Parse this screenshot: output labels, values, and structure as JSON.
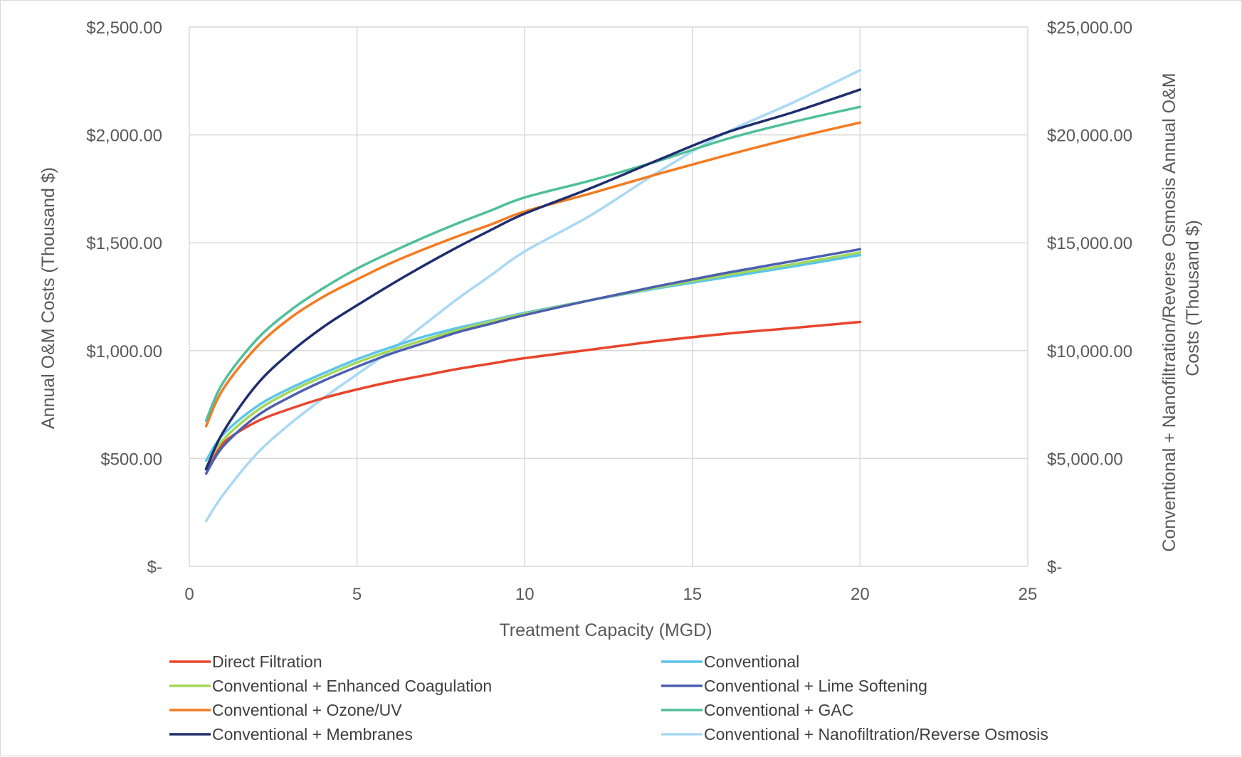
{
  "chart_data": {
    "type": "line",
    "title": "",
    "xlabel": "Treatment Capacity (MGD)",
    "ylabel": "Annual O&M Costs (Thousand $)",
    "y2label_line1": "Conventional + Nanofiltration/Reverse Osmosis Annual O&M",
    "y2label_line2": "Costs (Thousand $)",
    "xlim": [
      0,
      25
    ],
    "ylim": [
      0,
      2500
    ],
    "y2lim": [
      0,
      25000
    ],
    "x_ticks": [
      {
        "value": 0,
        "label": "0"
      },
      {
        "value": 5,
        "label": "5"
      },
      {
        "value": 10,
        "label": "10"
      },
      {
        "value": 15,
        "label": "15"
      },
      {
        "value": 20,
        "label": "20"
      },
      {
        "value": 25,
        "label": "25"
      }
    ],
    "y_ticks": [
      {
        "value": 0,
        "label": "$-"
      },
      {
        "value": 500,
        "label": "$500.00"
      },
      {
        "value": 1000,
        "label": "$1,000.00"
      },
      {
        "value": 1500,
        "label": "$1,500.00"
      },
      {
        "value": 2000,
        "label": "$2,000.00"
      },
      {
        "value": 2500,
        "label": "$2,500.00"
      }
    ],
    "y2_ticks": [
      {
        "value": 0,
        "label": "$-"
      },
      {
        "value": 5000,
        "label": "$5,000.00"
      },
      {
        "value": 10000,
        "label": "$10,000.00"
      },
      {
        "value": 15000,
        "label": "$15,000.00"
      },
      {
        "value": 20000,
        "label": "$20,000.00"
      },
      {
        "value": 25000,
        "label": "$25,000.00"
      }
    ],
    "grid": true,
    "legend_position": "bottom",
    "series": [
      {
        "name": "Direct Filtration",
        "color": "#E8452C",
        "axis": "left",
        "x": [
          0.5,
          1,
          2,
          3,
          4,
          5,
          6,
          7,
          8,
          9,
          10,
          12,
          14,
          16,
          18,
          20
        ],
        "y": [
          450,
          570,
          670,
          730,
          780,
          820,
          855,
          885,
          915,
          940,
          965,
          1005,
          1045,
          1078,
          1105,
          1133
        ]
      },
      {
        "name": "Conventional",
        "color": "#5BC4EC",
        "axis": "left",
        "x": [
          0.5,
          1,
          2,
          3,
          4,
          5,
          6,
          7,
          8,
          9,
          10,
          12,
          14,
          16,
          18,
          20
        ],
        "y": [
          490,
          610,
          740,
          825,
          895,
          960,
          1015,
          1065,
          1105,
          1140,
          1175,
          1235,
          1290,
          1340,
          1390,
          1443
        ]
      },
      {
        "name": "Conventional + Enhanced Coagulation",
        "color": "#A2D859",
        "axis": "left",
        "x": [
          0.5,
          1,
          2,
          3,
          4,
          5,
          6,
          7,
          8,
          9,
          10,
          12,
          14,
          16,
          18,
          20
        ],
        "y": [
          460,
          585,
          720,
          810,
          880,
          945,
          1000,
          1050,
          1095,
          1135,
          1170,
          1235,
          1295,
          1350,
          1400,
          1455
        ]
      },
      {
        "name": "Conventional + Lime Softening",
        "color": "#4C5FB0",
        "axis": "left",
        "x": [
          0.5,
          1,
          2,
          3,
          4,
          5,
          6,
          7,
          8,
          9,
          10,
          12,
          14,
          16,
          18,
          20
        ],
        "y": [
          430,
          555,
          695,
          785,
          860,
          925,
          985,
          1035,
          1085,
          1125,
          1165,
          1235,
          1300,
          1360,
          1415,
          1470
        ]
      },
      {
        "name": "Conventional + Ozone/UV",
        "color": "#F47B20",
        "axis": "left",
        "x": [
          0.5,
          1,
          2,
          3,
          4,
          5,
          6,
          7,
          8,
          9,
          10,
          12,
          14,
          16,
          18,
          20
        ],
        "y": [
          650,
          820,
          1015,
          1150,
          1250,
          1330,
          1405,
          1470,
          1530,
          1585,
          1645,
          1730,
          1820,
          1905,
          1985,
          2057
        ]
      },
      {
        "name": "Conventional + GAC",
        "color": "#4FBF9A",
        "axis": "left",
        "x": [
          0.5,
          1,
          2,
          3,
          4,
          5,
          6,
          7,
          8,
          9,
          10,
          12,
          14,
          16,
          18,
          20
        ],
        "y": [
          675,
          850,
          1050,
          1185,
          1290,
          1380,
          1455,
          1525,
          1590,
          1650,
          1710,
          1790,
          1880,
          1980,
          2060,
          2130
        ]
      },
      {
        "name": "Conventional + Membranes",
        "color": "#1F2E6E",
        "axis": "left",
        "x": [
          0.5,
          1,
          2,
          3,
          4,
          5,
          6,
          7,
          8,
          9,
          10,
          12,
          14,
          16,
          18,
          20
        ],
        "y": [
          450,
          620,
          840,
          990,
          1110,
          1210,
          1305,
          1395,
          1480,
          1560,
          1635,
          1755,
          1885,
          2010,
          2105,
          2210
        ]
      },
      {
        "name": "Conventional + Nanofiltration/Reverse Osmosis",
        "color": "#A9D8F5",
        "axis": "right",
        "x": [
          0.5,
          1,
          2,
          3,
          4,
          5,
          6,
          7,
          8,
          9,
          10,
          12,
          14,
          16,
          18,
          20
        ],
        "y": [
          2100,
          3300,
          5200,
          6600,
          7800,
          8900,
          10000,
          11200,
          12400,
          13500,
          14600,
          16300,
          18300,
          20100,
          21500,
          23000
        ]
      }
    ]
  }
}
